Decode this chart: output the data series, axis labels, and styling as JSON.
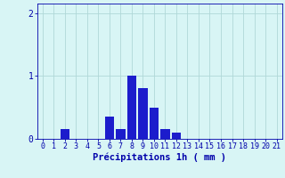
{
  "categories": [
    0,
    1,
    2,
    3,
    4,
    5,
    6,
    7,
    8,
    9,
    10,
    11,
    12,
    13,
    14,
    15,
    16,
    17,
    18,
    19,
    20,
    21
  ],
  "values": [
    0,
    0,
    0.15,
    0,
    0,
    0,
    0.35,
    0.15,
    1.0,
    0.8,
    0.5,
    0.15,
    0.1,
    0,
    0,
    0,
    0,
    0,
    0,
    0,
    0,
    0
  ],
  "bar_color": "#1c1ccc",
  "background_color": "#d8f5f5",
  "grid_color": "#b0d8d8",
  "axis_color": "#0000aa",
  "xlabel": "Précipitations 1h ( mm )",
  "ylim": [
    0,
    2.15
  ],
  "yticks": [
    0,
    1,
    2
  ],
  "xlim": [
    -0.5,
    21.5
  ],
  "xlabel_fontsize": 7.5,
  "tick_fontsize": 6.0
}
